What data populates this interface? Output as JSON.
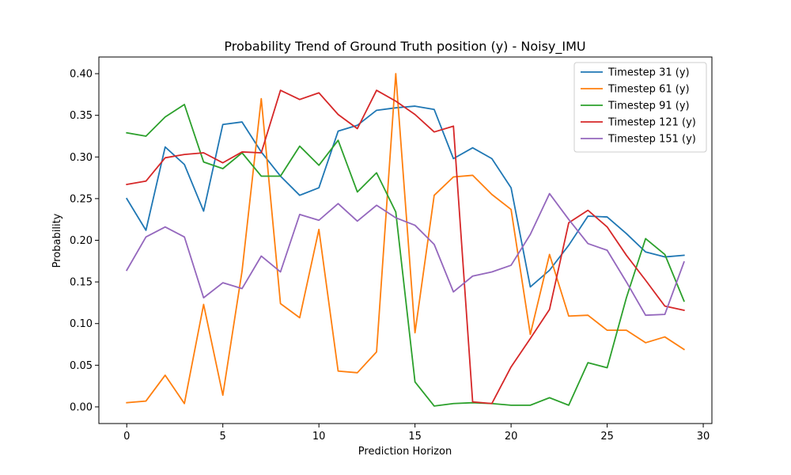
{
  "chart_data": {
    "type": "line",
    "title": "Probability Trend of Ground Truth position (y) - Noisy_IMU",
    "xlabel": "Prediction Horizon",
    "ylabel": "Probability",
    "xlim": [
      -1.45,
      30.45
    ],
    "ylim": [
      -0.02,
      0.42
    ],
    "xticks": [
      0,
      5,
      10,
      15,
      20,
      25,
      30
    ],
    "xtick_labels": [
      "0",
      "5",
      "10",
      "15",
      "20",
      "25",
      "30"
    ],
    "yticks": [
      0.0,
      0.05,
      0.1,
      0.15,
      0.2,
      0.25,
      0.3,
      0.35,
      0.4
    ],
    "ytick_labels": [
      "0.00",
      "0.05",
      "0.10",
      "0.15",
      "0.20",
      "0.25",
      "0.30",
      "0.35",
      "0.40"
    ],
    "grid": false,
    "legend_position": "top-right",
    "x": [
      0,
      1,
      2,
      3,
      4,
      5,
      6,
      7,
      8,
      9,
      10,
      11,
      12,
      13,
      14,
      15,
      16,
      17,
      18,
      19,
      20,
      21,
      22,
      23,
      24,
      25,
      26,
      27,
      28,
      29
    ],
    "series": [
      {
        "name": "Timestep 31 (y)",
        "color": "#1f77b4",
        "values": [
          0.25,
          0.212,
          0.312,
          0.291,
          0.235,
          0.339,
          0.342,
          0.306,
          0.277,
          0.254,
          0.263,
          0.331,
          0.338,
          0.356,
          0.359,
          0.361,
          0.357,
          0.298,
          0.311,
          0.298,
          0.263,
          0.144,
          0.164,
          0.194,
          0.229,
          0.228,
          0.208,
          0.186,
          0.18,
          0.182
        ]
      },
      {
        "name": "Timestep 61 (y)",
        "color": "#ff7f0e",
        "values": [
          0.005,
          0.007,
          0.038,
          0.004,
          0.123,
          0.014,
          0.163,
          0.37,
          0.124,
          0.107,
          0.213,
          0.043,
          0.041,
          0.066,
          0.4,
          0.089,
          0.254,
          0.276,
          0.278,
          0.255,
          0.237,
          0.087,
          0.183,
          0.109,
          0.11,
          0.092,
          0.092,
          0.077,
          0.084,
          0.069
        ]
      },
      {
        "name": "Timestep 91 (y)",
        "color": "#2ca02c",
        "values": [
          0.329,
          0.325,
          0.348,
          0.363,
          0.294,
          0.286,
          0.305,
          0.277,
          0.277,
          0.313,
          0.29,
          0.32,
          0.258,
          0.281,
          0.234,
          0.03,
          0.001,
          0.004,
          0.005,
          0.004,
          0.002,
          0.002,
          0.011,
          0.002,
          0.053,
          0.047,
          0.131,
          0.202,
          0.183,
          0.127
        ]
      },
      {
        "name": "Timestep 121 (y)",
        "color": "#d62728",
        "values": [
          0.267,
          0.271,
          0.299,
          0.303,
          0.305,
          0.293,
          0.306,
          0.305,
          0.38,
          0.369,
          0.377,
          0.351,
          0.334,
          0.38,
          0.367,
          0.351,
          0.33,
          0.337,
          0.006,
          0.004,
          0.048,
          0.082,
          0.117,
          0.221,
          0.236,
          0.216,
          0.182,
          0.152,
          0.121,
          0.116
        ]
      },
      {
        "name": "Timestep 151 (y)",
        "color": "#9467bd",
        "values": [
          0.164,
          0.204,
          0.216,
          0.204,
          0.131,
          0.149,
          0.142,
          0.181,
          0.162,
          0.231,
          0.224,
          0.244,
          0.223,
          0.242,
          0.227,
          0.218,
          0.195,
          0.138,
          0.157,
          0.162,
          0.17,
          0.207,
          0.256,
          0.225,
          0.196,
          0.188,
          0.15,
          0.11,
          0.111,
          0.174
        ]
      }
    ]
  }
}
